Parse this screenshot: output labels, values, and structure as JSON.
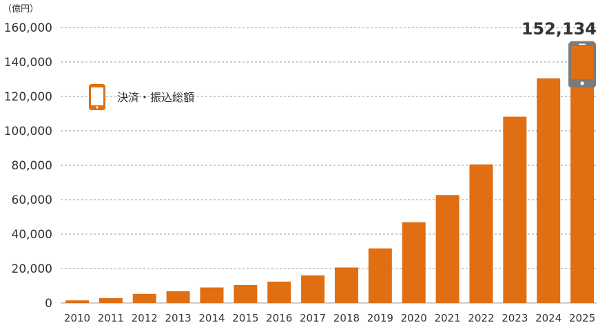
{
  "chart_data": {
    "type": "bar",
    "unit_label": "（億円）",
    "legend": "決済・振込総額",
    "categories": [
      "2010",
      "2011",
      "2012",
      "2013",
      "2014",
      "2015",
      "2016",
      "2017",
      "2018",
      "2019",
      "2020",
      "2021",
      "2022",
      "2023",
      "2024",
      "2025"
    ],
    "values": [
      1500,
      2800,
      5300,
      6800,
      9000,
      10400,
      12400,
      16000,
      20600,
      31700,
      46900,
      62700,
      80500,
      108200,
      130500,
      152134
    ],
    "y_ticks": [
      "0",
      "20,000",
      "40,000",
      "60,000",
      "80,000",
      "100,000",
      "120,000",
      "140,000",
      "160,000"
    ],
    "ylim": [
      0,
      160000
    ],
    "grid": true,
    "highlight_label": "152,134",
    "bar_color": "#e06e12",
    "device_frame_color": "#7b7b7b",
    "legend_icon": "smartphone-icon"
  }
}
